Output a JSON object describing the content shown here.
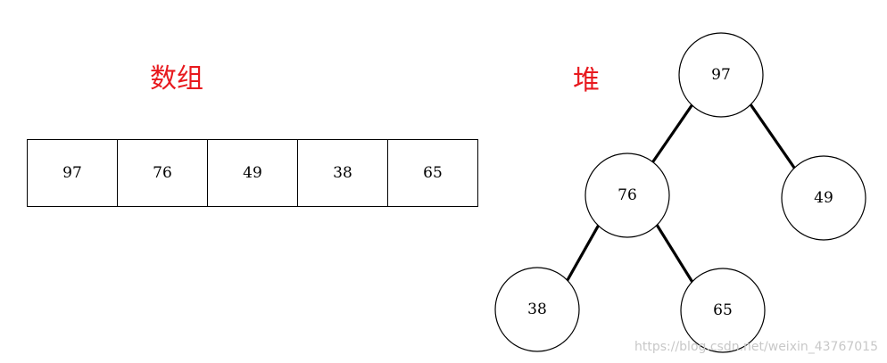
{
  "array_title": "数组",
  "heap_title": "堆",
  "array_values": [
    "97",
    "76",
    "49",
    "38",
    "65"
  ],
  "heap_nodes": [
    "97",
    "76",
    "49",
    "38",
    "65"
  ],
  "watermark": "https://blog.csdn.net/weixin_43767015",
  "colors": {
    "title": "#e8191e",
    "stroke": "#000000",
    "watermark": "#c8c8c8"
  }
}
